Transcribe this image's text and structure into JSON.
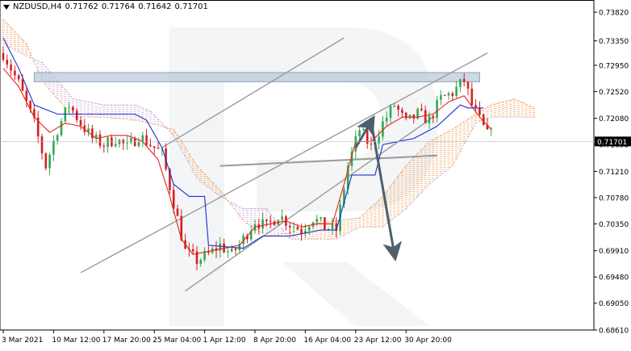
{
  "header": {
    "symbol": "NZDUSD,H4",
    "ohlc": [
      "0.71762",
      "0.71764",
      "0.71642",
      "0.71701"
    ]
  },
  "colors": {
    "bull": "#32a852",
    "bear": "#d42020",
    "tenkan": "#e8241c",
    "kijun": "#1a2fd6",
    "cloud_bull": "#f0a060",
    "cloud_bear": "#c8a8d0",
    "trendline": "#9a9a9a",
    "arrow": "#4f5f6b",
    "resistance_zone": "#b8c8d8",
    "price_tag_bg": "#000000",
    "grid": "#eeeeee"
  },
  "chart_data": {
    "type": "candlestick",
    "symbol": "NZDUSD",
    "timeframe": "H4",
    "ylim": [
      0.6861,
      0.7402
    ],
    "y_ticks": [
      "0.73820",
      "0.73350",
      "0.72950",
      "0.72520",
      "0.72080",
      "0.71655",
      "0.71210",
      "0.70780",
      "0.70350",
      "0.69910",
      "0.69480",
      "0.69050",
      "0.68610"
    ],
    "x_ticks": [
      "3 Mar 2021",
      "10 Mar 12:00",
      "17 Mar 20:00",
      "25 Mar 04:00",
      "1 Apr 12:00",
      "8 Apr 20:00",
      "16 Apr 04:00",
      "23 Apr 12:00",
      "30 Apr 20:00"
    ],
    "current_price": "0.71701",
    "price_anchors": [
      [
        0,
        0.7315
      ],
      [
        4,
        0.7265
      ],
      [
        8,
        0.72
      ],
      [
        11,
        0.713
      ],
      [
        14,
        0.719
      ],
      [
        17,
        0.723
      ],
      [
        20,
        0.72
      ],
      [
        23,
        0.7175
      ],
      [
        26,
        0.7165
      ],
      [
        29,
        0.7175
      ],
      [
        32,
        0.716
      ],
      [
        35,
        0.718
      ],
      [
        38,
        0.7165
      ],
      [
        41,
        0.715
      ],
      [
        44,
        0.707
      ],
      [
        47,
        0.699
      ],
      [
        50,
        0.6975
      ],
      [
        53,
        0.6985
      ],
      [
        56,
        0.7
      ],
      [
        59,
        0.6985
      ],
      [
        62,
        0.701
      ],
      [
        65,
        0.704
      ],
      [
        68,
        0.703
      ],
      [
        71,
        0.705
      ],
      [
        74,
        0.7035
      ],
      [
        77,
        0.7025
      ],
      [
        80,
        0.7045
      ],
      [
        83,
        0.703
      ],
      [
        86,
        0.7025
      ],
      [
        89,
        0.713
      ],
      [
        92,
        0.719
      ],
      [
        95,
        0.716
      ],
      [
        98,
        0.72
      ],
      [
        101,
        0.723
      ],
      [
        104,
        0.72
      ],
      [
        107,
        0.7215
      ],
      [
        110,
        0.7205
      ],
      [
        113,
        0.724
      ],
      [
        116,
        0.725
      ],
      [
        119,
        0.727
      ],
      [
        121,
        0.723
      ],
      [
        123,
        0.7205
      ],
      [
        125,
        0.718
      ],
      [
        126,
        0.72
      ]
    ],
    "tenkan_sen": [
      [
        0,
        0.729
      ],
      [
        4,
        0.726
      ],
      [
        8,
        0.721
      ],
      [
        12,
        0.7185
      ],
      [
        16,
        0.72
      ],
      [
        20,
        0.7195
      ],
      [
        24,
        0.7175
      ],
      [
        28,
        0.718
      ],
      [
        32,
        0.718
      ],
      [
        36,
        0.717
      ],
      [
        40,
        0.714
      ],
      [
        43,
        0.708
      ],
      [
        46,
        0.701
      ],
      [
        49,
        0.6985
      ],
      [
        53,
        0.699
      ],
      [
        57,
        0.6995
      ],
      [
        61,
        0.7
      ],
      [
        65,
        0.703
      ],
      [
        69,
        0.7035
      ],
      [
        73,
        0.704
      ],
      [
        77,
        0.703
      ],
      [
        81,
        0.7035
      ],
      [
        85,
        0.7035
      ],
      [
        88,
        0.71
      ],
      [
        91,
        0.717
      ],
      [
        95,
        0.717
      ],
      [
        99,
        0.7195
      ],
      [
        103,
        0.721
      ],
      [
        107,
        0.721
      ],
      [
        111,
        0.7215
      ],
      [
        115,
        0.7235
      ],
      [
        119,
        0.7245
      ],
      [
        123,
        0.721
      ],
      [
        126,
        0.719
      ]
    ],
    "kijun_sen": [
      [
        0,
        0.734
      ],
      [
        4,
        0.729
      ],
      [
        8,
        0.723
      ],
      [
        14,
        0.7215
      ],
      [
        22,
        0.7215
      ],
      [
        30,
        0.7215
      ],
      [
        34,
        0.7215
      ],
      [
        37,
        0.7205
      ],
      [
        41,
        0.716
      ],
      [
        44,
        0.71
      ],
      [
        48,
        0.708
      ],
      [
        52,
        0.708
      ],
      [
        53,
        0.7
      ],
      [
        62,
        0.6995
      ],
      [
        67,
        0.7015
      ],
      [
        74,
        0.7015
      ],
      [
        82,
        0.7025
      ],
      [
        86,
        0.7025
      ],
      [
        90,
        0.7115
      ],
      [
        96,
        0.7115
      ],
      [
        98,
        0.7165
      ],
      [
        106,
        0.7175
      ],
      [
        112,
        0.7195
      ],
      [
        118,
        0.723
      ],
      [
        120,
        0.7225
      ],
      [
        124,
        0.7225
      ]
    ],
    "cloud_span_a": [
      [
        0,
        0.737
      ],
      [
        6,
        0.733
      ],
      [
        10,
        0.727
      ],
      [
        18,
        0.721
      ],
      [
        26,
        0.721
      ],
      [
        34,
        0.7205
      ],
      [
        38,
        0.72
      ],
      [
        44,
        0.719
      ],
      [
        50,
        0.713
      ],
      [
        56,
        0.709
      ],
      [
        62,
        0.704
      ],
      [
        68,
        0.7015
      ],
      [
        74,
        0.702
      ],
      [
        80,
        0.7035
      ],
      [
        86,
        0.704
      ],
      [
        92,
        0.7045
      ],
      [
        98,
        0.708
      ],
      [
        104,
        0.713
      ],
      [
        110,
        0.717
      ],
      [
        116,
        0.719
      ],
      [
        122,
        0.7215
      ],
      [
        126,
        0.723
      ],
      [
        132,
        0.724
      ],
      [
        137,
        0.7225
      ]
    ],
    "cloud_span_b": [
      [
        0,
        0.733
      ],
      [
        6,
        0.731
      ],
      [
        10,
        0.73
      ],
      [
        18,
        0.724
      ],
      [
        26,
        0.723
      ],
      [
        34,
        0.723
      ],
      [
        38,
        0.722
      ],
      [
        44,
        0.718
      ],
      [
        50,
        0.711
      ],
      [
        56,
        0.708
      ],
      [
        62,
        0.706
      ],
      [
        68,
        0.706
      ],
      [
        74,
        0.701
      ],
      [
        80,
        0.701
      ],
      [
        86,
        0.701
      ],
      [
        92,
        0.703
      ],
      [
        98,
        0.703
      ],
      [
        104,
        0.706
      ],
      [
        110,
        0.71
      ],
      [
        116,
        0.713
      ],
      [
        122,
        0.72
      ],
      [
        126,
        0.721
      ],
      [
        132,
        0.721
      ],
      [
        137,
        0.721
      ]
    ],
    "bar_count": 138,
    "annotations": {
      "channel_upper": [
        [
          41,
          0.716
        ],
        [
          88,
          0.734
        ]
      ],
      "channel_lower": [
        [
          47,
          0.6925
        ],
        [
          111,
          0.721
        ]
      ],
      "outer_rising_line": [
        [
          20,
          0.6955
        ],
        [
          125,
          0.7315
        ]
      ],
      "support_line": [
        [
          56,
          0.713
        ],
        [
          112,
          0.7147
        ]
      ],
      "resistance_zone": {
        "x": [
          8,
          123
        ],
        "y": [
          0.7268,
          0.7283
        ]
      },
      "arrow_up": [
        [
          91,
          0.716
        ],
        [
          95,
          0.7203
        ]
      ],
      "arrow_down": [
        [
          95,
          0.7203
        ],
        [
          101,
          0.6985
        ]
      ]
    }
  }
}
